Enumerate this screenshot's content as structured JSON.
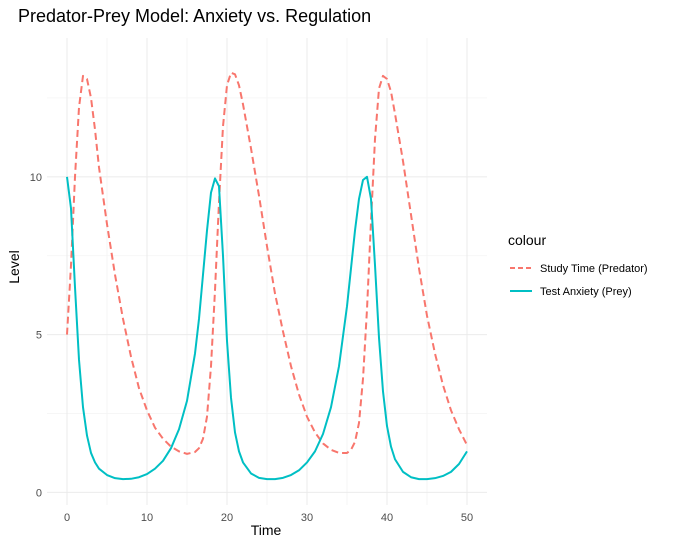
{
  "chart_data": {
    "type": "line",
    "title": "Predator-Prey Model: Anxiety vs. Regulation",
    "xlabel": "Time",
    "ylabel": "Level",
    "xlim": [
      -2.5,
      52.5
    ],
    "ylim": [
      -0.4,
      14.4
    ],
    "x_ticks": [
      0,
      10,
      20,
      30,
      40,
      50
    ],
    "x_tick_labels": [
      "0",
      "10",
      "20",
      "30",
      "40",
      "50"
    ],
    "y_ticks": [
      0,
      5,
      10
    ],
    "y_tick_labels": [
      "0",
      "5",
      "10"
    ],
    "grid": true,
    "legend": {
      "title": "colour",
      "position": "right"
    },
    "series": [
      {
        "name": "Study Time (Predator)",
        "color": "#F8766D",
        "line_style": "dashed",
        "x": [
          0,
          0.5,
          1,
          1.5,
          2,
          2.5,
          3,
          3.5,
          4,
          5,
          6,
          7,
          8,
          9,
          10,
          11,
          12,
          13,
          14,
          15,
          16,
          16.5,
          17,
          17.5,
          18,
          18.5,
          19,
          19.5,
          20,
          20.5,
          21,
          21.5,
          22,
          23,
          24,
          25,
          26,
          27,
          28,
          29,
          30,
          31,
          32,
          33,
          34,
          35,
          35.5,
          36,
          36.5,
          37,
          37.5,
          38,
          38.5,
          39,
          39.5,
          40,
          40.5,
          41,
          42,
          43,
          44,
          45,
          46,
          47,
          48,
          49,
          50
        ],
        "values": [
          5.0,
          7.2,
          10.0,
          12.2,
          13.2,
          13.1,
          12.5,
          11.5,
          10.3,
          8.5,
          6.9,
          5.5,
          4.3,
          3.3,
          2.6,
          2.05,
          1.7,
          1.45,
          1.3,
          1.22,
          1.28,
          1.4,
          1.7,
          2.4,
          4.0,
          6.4,
          9.2,
          11.6,
          12.9,
          13.3,
          13.25,
          12.9,
          12.3,
          10.9,
          9.4,
          7.8,
          6.3,
          5.1,
          4.0,
          3.1,
          2.4,
          1.9,
          1.55,
          1.35,
          1.25,
          1.25,
          1.35,
          1.6,
          2.2,
          3.6,
          5.8,
          8.6,
          11.2,
          12.8,
          13.2,
          13.1,
          12.7,
          12.0,
          10.5,
          8.8,
          7.1,
          5.6,
          4.4,
          3.4,
          2.6,
          2.0,
          1.5
        ]
      },
      {
        "name": "Test Anxiety (Prey)",
        "color": "#00BFC4",
        "line_style": "solid",
        "x": [
          0,
          0.5,
          1,
          1.5,
          2,
          2.5,
          3,
          3.5,
          4,
          5,
          6,
          7,
          8,
          9,
          10,
          11,
          12,
          13,
          14,
          15,
          16,
          16.5,
          17,
          17.5,
          18,
          18.5,
          19,
          19.5,
          20,
          20.5,
          21,
          21.5,
          22,
          23,
          24,
          25,
          26,
          27,
          28,
          29,
          30,
          31,
          32,
          33,
          34,
          35,
          35.5,
          36,
          36.5,
          37,
          37.5,
          38,
          38.5,
          39,
          39.5,
          40,
          40.5,
          41,
          42,
          43,
          44,
          45,
          46,
          47,
          48,
          49,
          50
        ],
        "values": [
          10.0,
          9.0,
          6.5,
          4.2,
          2.7,
          1.8,
          1.25,
          0.95,
          0.75,
          0.55,
          0.45,
          0.42,
          0.43,
          0.48,
          0.58,
          0.75,
          1.0,
          1.4,
          2.0,
          2.9,
          4.4,
          5.5,
          6.9,
          8.3,
          9.5,
          9.95,
          9.7,
          7.5,
          4.8,
          3.0,
          1.9,
          1.3,
          0.95,
          0.6,
          0.46,
          0.42,
          0.42,
          0.46,
          0.55,
          0.7,
          0.95,
          1.3,
          1.85,
          2.7,
          4.0,
          5.9,
          7.1,
          8.3,
          9.3,
          9.9,
          10.0,
          9.3,
          7.2,
          4.9,
          3.2,
          2.1,
          1.45,
          1.05,
          0.65,
          0.48,
          0.42,
          0.42,
          0.45,
          0.52,
          0.65,
          0.9,
          1.3
        ]
      }
    ]
  }
}
